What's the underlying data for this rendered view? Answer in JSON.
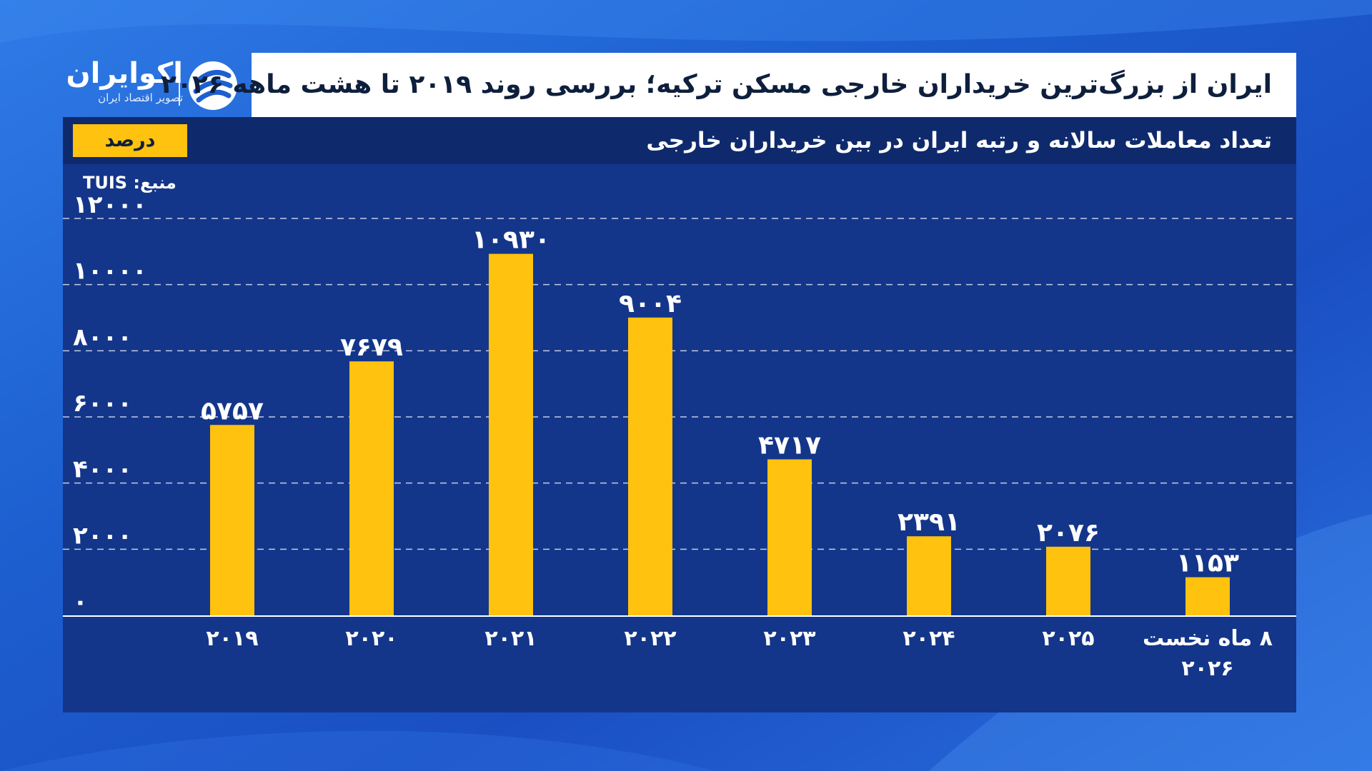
{
  "header": {
    "title": "ایران از بزرگ‌ترین خریداران خارجی مسکن ترکیه؛ بررسی روند ۲۰۱۹ تا هشت ماهه ۲۰۲۶",
    "logo_name": "اکوایران",
    "logo_tagline": "تصویر اقتصاد ایران"
  },
  "panel": {
    "subtitle": "تعداد معاملات سالانه و رتبه ایران در بین خریداران خارجی",
    "unit_badge": "درصد",
    "source": "منبع: TUIS"
  },
  "colors": {
    "bar": "#ffc20e",
    "panel": "#13368a",
    "subbar": "#0f2a6c",
    "text": "#ffffff"
  },
  "chart_data": {
    "type": "bar",
    "categories": [
      "۲۰۱۹",
      "۲۰۲۰",
      "۲۰۲۱",
      "۲۰۲۲",
      "۲۰۲۳",
      "۲۰۲۴",
      "۲۰۲۵",
      "۸ ماه نخست ۲۰۲۶"
    ],
    "values": [
      5757,
      7679,
      10930,
      9004,
      4717,
      2391,
      2076,
      1153
    ],
    "value_labels": [
      "۵۷۵۷",
      "۷۶۷۹",
      "۱۰۹۳۰",
      "۹۰۰۴",
      "۴۷۱۷",
      "۲۳۹۱",
      "۲۰۷۶",
      "۱۱۵۳"
    ],
    "y_ticks": [
      0,
      2000,
      4000,
      6000,
      8000,
      10000,
      12000
    ],
    "y_tick_labels": [
      "۰",
      "۲۰۰۰",
      "۴۰۰۰",
      "۶۰۰۰",
      "۸۰۰۰",
      "۱۰۰۰۰",
      "۱۲۰۰۰"
    ],
    "ylim": [
      0,
      12000
    ],
    "grid": true,
    "xlabel": "",
    "ylabel": ""
  }
}
